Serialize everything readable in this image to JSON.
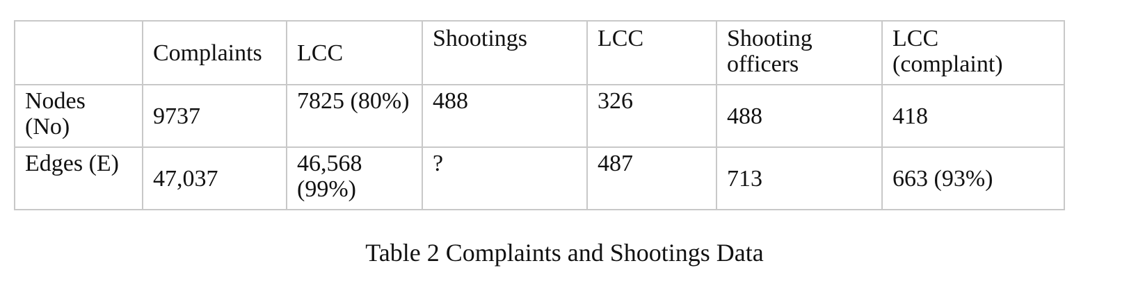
{
  "table": {
    "headers": [
      "",
      "Complaints",
      "LCC",
      "Shootings",
      "LCC",
      "Shooting officers",
      "LCC (complaint)"
    ],
    "rows": [
      {
        "label": "Nodes (No)",
        "cells": [
          "9737",
          "7825 (80%)",
          "488",
          "326",
          "488",
          "418"
        ]
      },
      {
        "label": "Edges (E)",
        "cells": [
          "47,037",
          "46,568 (99%)",
          "?",
          "487",
          "713",
          "663  (93%)"
        ]
      }
    ]
  },
  "caption": "Table 2 Complaints and Shootings Data"
}
